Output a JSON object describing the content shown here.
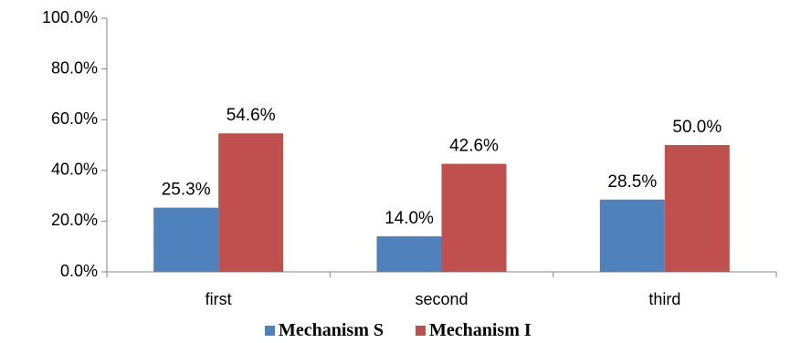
{
  "chart_data": {
    "type": "bar",
    "title": "",
    "xlabel": "",
    "ylabel": "",
    "categories": [
      "first",
      "second",
      "third"
    ],
    "series": [
      {
        "name": "Mechanism S",
        "color": "#4F81BD",
        "values": [
          25.3,
          14.0,
          28.5
        ],
        "labels": [
          "25.3%",
          "14.0%",
          "28.5%"
        ]
      },
      {
        "name": "Mechanism I",
        "color": "#C0504D",
        "values": [
          54.6,
          42.6,
          50.0
        ],
        "labels": [
          "54.6%",
          "42.6%",
          "50.0%"
        ]
      }
    ],
    "ylim": [
      0,
      100
    ],
    "yticks": [
      0,
      20,
      40,
      60,
      80,
      100
    ],
    "ytick_labels": [
      "0.0%",
      "20.0%",
      "40.0%",
      "60.0%",
      "80.0%",
      "100.0%"
    ],
    "grid": false,
    "legend_position": "bottom"
  }
}
